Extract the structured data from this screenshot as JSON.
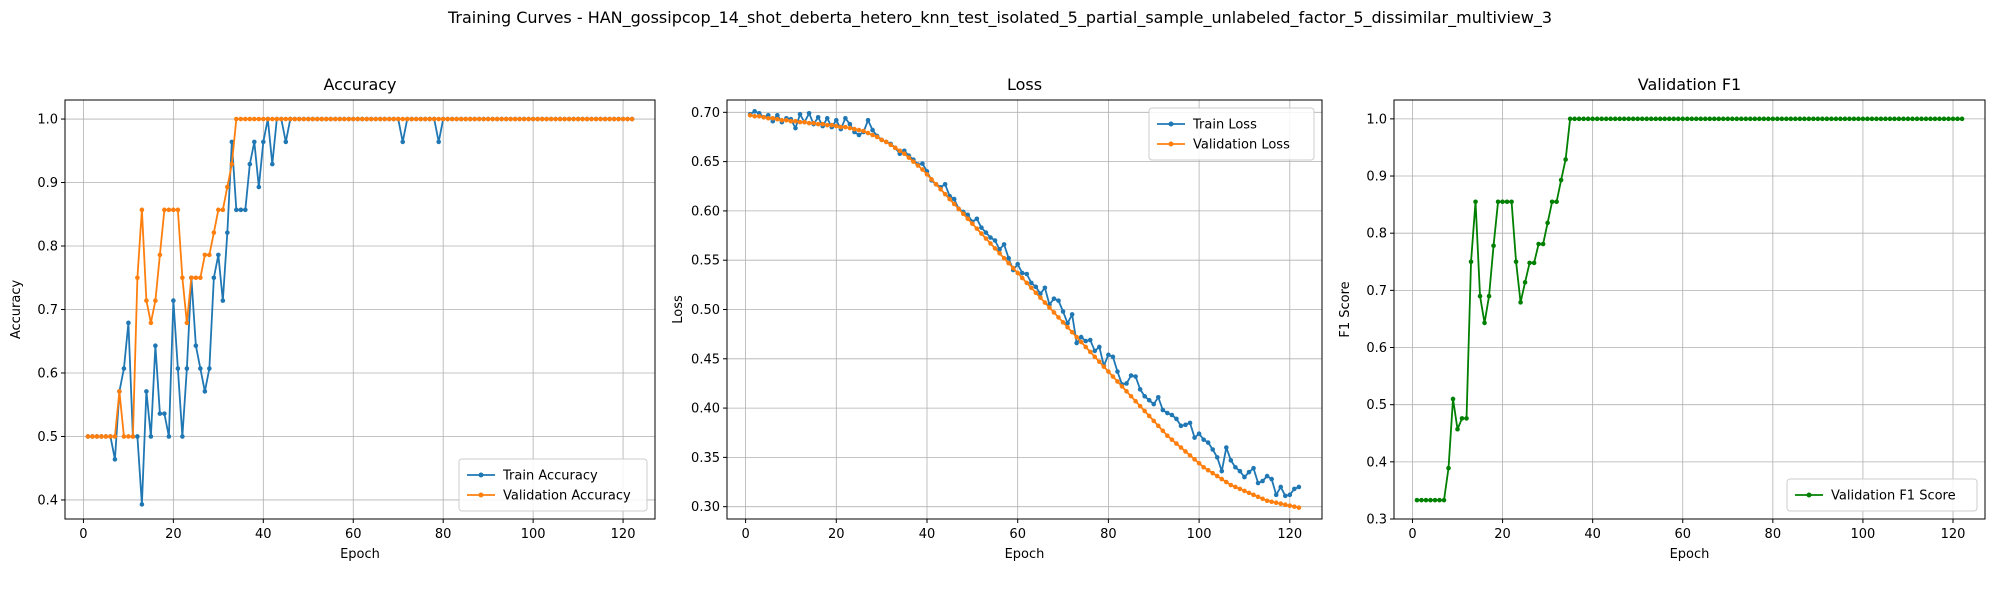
{
  "figure": {
    "suptitle": "Training Curves - HAN_gossipcop_14_shot_deberta_hetero_knn_test_isolated_5_partial_sample_unlabeled_factor_5_dissimilar_multiview_3"
  },
  "chart_data": [
    {
      "type": "line",
      "title": "Accuracy",
      "xlabel": "Epoch",
      "ylabel": "Accuracy",
      "xlim": [
        -4.1,
        127.1
      ],
      "ylim": [
        0.37,
        1.03
      ],
      "xticks": [
        0,
        20,
        40,
        60,
        80,
        100,
        120
      ],
      "yticks": [
        0.4,
        0.5,
        0.6,
        0.7,
        0.8,
        0.9,
        1.0
      ],
      "ytick_labels": [
        "0.4",
        "0.5",
        "0.6",
        "0.7",
        "0.8",
        "0.9",
        "1.0"
      ],
      "grid": true,
      "legend": "lower-right",
      "series": [
        {
          "name": "Train Accuracy",
          "color": "#1f77b4",
          "x_start": 1,
          "values": [
            0.5,
            0.5,
            0.5,
            0.5,
            0.5,
            0.5,
            0.464,
            0.571,
            0.607,
            0.679,
            0.5,
            0.5,
            0.393,
            0.571,
            0.5,
            0.643,
            0.536,
            0.536,
            0.5,
            0.714,
            0.607,
            0.5,
            0.607,
            0.75,
            0.643,
            0.607,
            0.571,
            0.607,
            0.75,
            0.786,
            0.714,
            0.821,
            0.964,
            0.857,
            0.857,
            0.857,
            0.929,
            0.964,
            0.893,
            0.964,
            1.0,
            0.929,
            1.0,
            1.0,
            0.964,
            1.0,
            1.0,
            1.0,
            1.0,
            1.0,
            1.0,
            1.0,
            1.0,
            1.0,
            1.0,
            1.0,
            1.0,
            1.0,
            1.0,
            1.0,
            1.0,
            1.0,
            1.0,
            1.0,
            1.0,
            1.0,
            1.0,
            1.0,
            1.0,
            1.0,
            0.964,
            1.0,
            1.0,
            1.0,
            1.0,
            1.0,
            1.0,
            1.0,
            0.964,
            1.0,
            1.0,
            1.0,
            1.0,
            1.0,
            1.0,
            1.0,
            1.0,
            1.0,
            1.0,
            1.0,
            1.0,
            1.0,
            1.0,
            1.0,
            1.0,
            1.0,
            1.0,
            1.0,
            1.0,
            1.0,
            1.0,
            1.0,
            1.0,
            1.0,
            1.0,
            1.0,
            1.0,
            1.0,
            1.0,
            1.0,
            1.0,
            1.0,
            1.0,
            1.0,
            1.0,
            1.0,
            1.0,
            1.0,
            1.0,
            1.0,
            1.0,
            1.0
          ]
        },
        {
          "name": "Validation Accuracy",
          "color": "#ff7f0e",
          "x_start": 1,
          "values": [
            0.5,
            0.5,
            0.5,
            0.5,
            0.5,
            0.5,
            0.5,
            0.571,
            0.5,
            0.5,
            0.5,
            0.75,
            0.857,
            0.714,
            0.679,
            0.714,
            0.786,
            0.857,
            0.857,
            0.857,
            0.857,
            0.75,
            0.679,
            0.75,
            0.75,
            0.75,
            0.786,
            0.786,
            0.821,
            0.857,
            0.857,
            0.893,
            0.929,
            1.0,
            1.0,
            1.0,
            1.0,
            1.0,
            1.0,
            1.0,
            1.0,
            1.0,
            1.0,
            1.0,
            1.0,
            1.0,
            1.0,
            1.0,
            1.0,
            1.0,
            1.0,
            1.0,
            1.0,
            1.0,
            1.0,
            1.0,
            1.0,
            1.0,
            1.0,
            1.0,
            1.0,
            1.0,
            1.0,
            1.0,
            1.0,
            1.0,
            1.0,
            1.0,
            1.0,
            1.0,
            1.0,
            1.0,
            1.0,
            1.0,
            1.0,
            1.0,
            1.0,
            1.0,
            1.0,
            1.0,
            1.0,
            1.0,
            1.0,
            1.0,
            1.0,
            1.0,
            1.0,
            1.0,
            1.0,
            1.0,
            1.0,
            1.0,
            1.0,
            1.0,
            1.0,
            1.0,
            1.0,
            1.0,
            1.0,
            1.0,
            1.0,
            1.0,
            1.0,
            1.0,
            1.0,
            1.0,
            1.0,
            1.0,
            1.0,
            1.0,
            1.0,
            1.0,
            1.0,
            1.0,
            1.0,
            1.0,
            1.0,
            1.0,
            1.0,
            1.0,
            1.0,
            1.0
          ]
        }
      ]
    },
    {
      "type": "line",
      "title": "Loss",
      "xlabel": "Epoch",
      "ylabel": "Loss",
      "xlim": [
        -4.1,
        127.1
      ],
      "ylim": [
        0.2875,
        0.7125
      ],
      "xticks": [
        0,
        20,
        40,
        60,
        80,
        100,
        120
      ],
      "yticks": [
        0.3,
        0.35,
        0.4,
        0.45,
        0.5,
        0.55,
        0.6,
        0.65,
        0.7
      ],
      "ytick_labels": [
        "0.30",
        "0.35",
        "0.40",
        "0.45",
        "0.50",
        "0.55",
        "0.60",
        "0.65",
        "0.70"
      ],
      "grid": true,
      "legend": "top-right",
      "series": [
        {
          "name": "Train Loss",
          "color": "#1f77b4",
          "x_start": 1,
          "values": [
            0.698,
            0.701,
            0.699,
            0.695,
            0.697,
            0.691,
            0.697,
            0.69,
            0.694,
            0.693,
            0.684,
            0.698,
            0.69,
            0.699,
            0.688,
            0.695,
            0.686,
            0.694,
            0.685,
            0.692,
            0.683,
            0.694,
            0.688,
            0.68,
            0.677,
            0.68,
            0.692,
            0.682,
            0.676,
            0.672,
            0.67,
            0.668,
            0.664,
            0.658,
            0.661,
            0.656,
            0.652,
            0.647,
            0.648,
            0.64,
            0.631,
            0.627,
            0.624,
            0.627,
            0.615,
            0.612,
            0.602,
            0.599,
            0.596,
            0.589,
            0.592,
            0.583,
            0.578,
            0.573,
            0.57,
            0.561,
            0.566,
            0.552,
            0.54,
            0.546,
            0.537,
            0.536,
            0.527,
            0.523,
            0.516,
            0.522,
            0.505,
            0.511,
            0.509,
            0.498,
            0.486,
            0.495,
            0.466,
            0.472,
            0.468,
            0.469,
            0.458,
            0.462,
            0.443,
            0.454,
            0.452,
            0.437,
            0.424,
            0.425,
            0.433,
            0.432,
            0.419,
            0.412,
            0.408,
            0.404,
            0.411,
            0.398,
            0.395,
            0.393,
            0.389,
            0.382,
            0.383,
            0.385,
            0.37,
            0.374,
            0.368,
            0.365,
            0.358,
            0.35,
            0.336,
            0.36,
            0.347,
            0.34,
            0.336,
            0.33,
            0.335,
            0.339,
            0.324,
            0.326,
            0.331,
            0.328,
            0.312,
            0.32,
            0.311,
            0.312,
            0.318,
            0.32
          ]
        },
        {
          "name": "Validation Loss",
          "color": "#ff7f0e",
          "x_start": 1,
          "values": [
            0.697,
            0.696,
            0.696,
            0.695,
            0.694,
            0.694,
            0.693,
            0.692,
            0.692,
            0.691,
            0.691,
            0.69,
            0.69,
            0.689,
            0.689,
            0.688,
            0.688,
            0.687,
            0.687,
            0.686,
            0.685,
            0.685,
            0.684,
            0.683,
            0.682,
            0.681,
            0.679,
            0.677,
            0.675,
            0.672,
            0.67,
            0.667,
            0.664,
            0.661,
            0.658,
            0.654,
            0.65,
            0.646,
            0.642,
            0.637,
            0.632,
            0.627,
            0.622,
            0.617,
            0.612,
            0.607,
            0.602,
            0.597,
            0.592,
            0.587,
            0.582,
            0.577,
            0.572,
            0.567,
            0.562,
            0.557,
            0.552,
            0.547,
            0.542,
            0.537,
            0.532,
            0.527,
            0.522,
            0.517,
            0.512,
            0.507,
            0.502,
            0.497,
            0.492,
            0.487,
            0.482,
            0.477,
            0.472,
            0.467,
            0.462,
            0.457,
            0.452,
            0.447,
            0.442,
            0.437,
            0.432,
            0.427,
            0.422,
            0.417,
            0.412,
            0.407,
            0.402,
            0.397,
            0.392,
            0.387,
            0.382,
            0.377,
            0.372,
            0.368,
            0.364,
            0.36,
            0.356,
            0.352,
            0.348,
            0.344,
            0.34,
            0.337,
            0.334,
            0.331,
            0.328,
            0.325,
            0.322,
            0.32,
            0.318,
            0.316,
            0.314,
            0.312,
            0.31,
            0.308,
            0.306,
            0.305,
            0.304,
            0.303,
            0.302,
            0.301,
            0.3,
            0.299
          ]
        }
      ]
    },
    {
      "type": "line",
      "title": "Validation F1",
      "xlabel": "Epoch",
      "ylabel": "F1 Score",
      "xlim": [
        -4.1,
        127.1
      ],
      "ylim": [
        0.3,
        1.033
      ],
      "xticks": [
        0,
        20,
        40,
        60,
        80,
        100,
        120
      ],
      "yticks": [
        0.3,
        0.4,
        0.5,
        0.6,
        0.7,
        0.8,
        0.9,
        1.0
      ],
      "ytick_labels": [
        "0.3",
        "0.4",
        "0.5",
        "0.6",
        "0.7",
        "0.8",
        "0.9",
        "1.0"
      ],
      "grid": true,
      "legend": "lower-right",
      "series": [
        {
          "name": "Validation F1 Score",
          "color": "#008000",
          "x_start": 1,
          "values": [
            0.333,
            0.333,
            0.333,
            0.333,
            0.333,
            0.333,
            0.333,
            0.389,
            0.51,
            0.457,
            0.476,
            0.476,
            0.75,
            0.855,
            0.69,
            0.643,
            0.69,
            0.778,
            0.855,
            0.855,
            0.855,
            0.855,
            0.75,
            0.679,
            0.714,
            0.748,
            0.748,
            0.781,
            0.781,
            0.818,
            0.855,
            0.855,
            0.893,
            0.929,
            1.0,
            1.0,
            1.0,
            1.0,
            1.0,
            1.0,
            1.0,
            1.0,
            1.0,
            1.0,
            1.0,
            1.0,
            1.0,
            1.0,
            1.0,
            1.0,
            1.0,
            1.0,
            1.0,
            1.0,
            1.0,
            1.0,
            1.0,
            1.0,
            1.0,
            1.0,
            1.0,
            1.0,
            1.0,
            1.0,
            1.0,
            1.0,
            1.0,
            1.0,
            1.0,
            1.0,
            1.0,
            1.0,
            1.0,
            1.0,
            1.0,
            1.0,
            1.0,
            1.0,
            1.0,
            1.0,
            1.0,
            1.0,
            1.0,
            1.0,
            1.0,
            1.0,
            1.0,
            1.0,
            1.0,
            1.0,
            1.0,
            1.0,
            1.0,
            1.0,
            1.0,
            1.0,
            1.0,
            1.0,
            1.0,
            1.0,
            1.0,
            1.0,
            1.0,
            1.0,
            1.0,
            1.0,
            1.0,
            1.0,
            1.0,
            1.0,
            1.0,
            1.0,
            1.0,
            1.0,
            1.0,
            1.0,
            1.0,
            1.0,
            1.0,
            1.0,
            1.0,
            1.0
          ]
        }
      ]
    }
  ]
}
